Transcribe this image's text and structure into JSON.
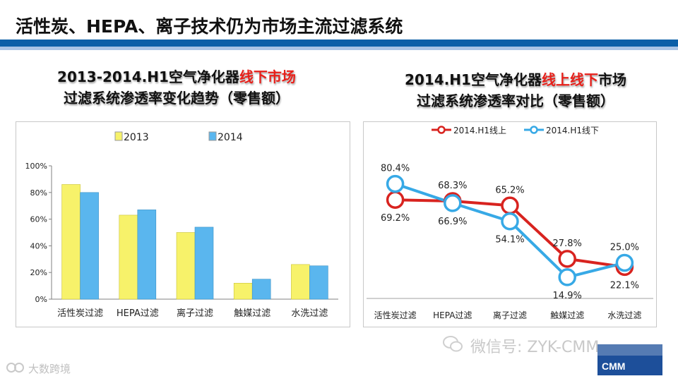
{
  "slide": {
    "title": "活性炭、HEPA、离子技术仍为市场主流过滤系统",
    "colors": {
      "band_dark": "#0b5fa8",
      "band_light": "#a9c4e6"
    }
  },
  "chart_data": [
    {
      "type": "bar",
      "title_prefix": "2013-2014.H1空气净化器",
      "title_highlight": "线下市场",
      "title_line2": "过滤系统渗透率变化趋势（零售额）",
      "categories": [
        "活性炭过滤",
        "HEPA过滤",
        "离子过滤",
        "触媒过滤",
        "水洗过滤"
      ],
      "series": [
        {
          "name": "2013",
          "color": "#f7f26a",
          "values": [
            86,
            63,
            50,
            12,
            26
          ]
        },
        {
          "name": "2014",
          "color": "#5ab6ee",
          "values": [
            80,
            67,
            54,
            15,
            25
          ]
        }
      ],
      "ylim": [
        0,
        100
      ],
      "yticks": [
        "0%",
        "20%",
        "40%",
        "60%",
        "80%",
        "100%"
      ],
      "legend": "top"
    },
    {
      "type": "line",
      "title_prefix": "2014.H1空气净化器",
      "title_highlight": "线上线下",
      "title_suffix": "市场",
      "title_line2": "过滤系统渗透率对比（零售额）",
      "categories": [
        "活性炭过滤",
        "HEPA过滤",
        "离子过滤",
        "触媒过滤",
        "水洗过滤"
      ],
      "series": [
        {
          "name": "2014.H1线上",
          "color": "#d8231f",
          "values": [
            69.2,
            68.3,
            65.2,
            27.8,
            22.1
          ],
          "labels": [
            "69.2%",
            "68.3%",
            "65.2%",
            "27.8%",
            "22.1%"
          ]
        },
        {
          "name": "2014.H1线下",
          "color": "#37a9e6",
          "values": [
            80.4,
            66.9,
            54.1,
            14.9,
            25.0
          ],
          "labels": [
            "80.4%",
            "66.9%",
            "54.1%",
            "14.9%",
            "25.0%"
          ]
        }
      ],
      "ylim": [
        0,
        100
      ],
      "legend": "top"
    }
  ],
  "watermark": {
    "wechat": "微信号: ZYK-CMM",
    "logo": "CMM",
    "brand": "大数跨境"
  }
}
